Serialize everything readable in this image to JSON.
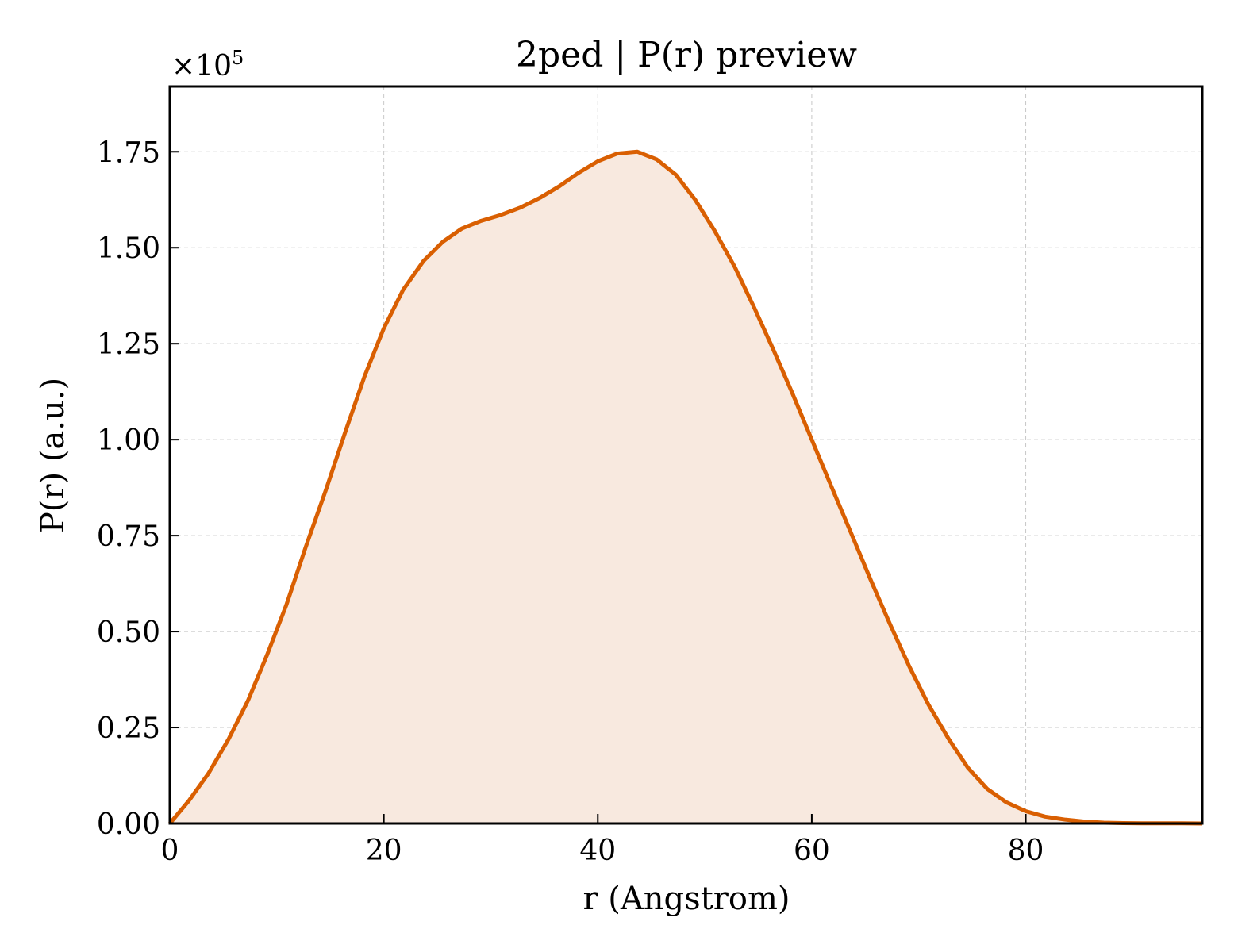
{
  "chart_data": {
    "type": "area",
    "title": "2ped | P(r) preview",
    "xlabel": "r (Angstrom)",
    "ylabel": "P(r) (a.u.)",
    "offset_text": {
      "base": "×10",
      "exponent": "5"
    },
    "xlim": [
      0,
      96.5
    ],
    "ylim": [
      0,
      1.92
    ],
    "xticks": [
      0,
      20,
      40,
      60,
      80
    ],
    "xtick_labels": [
      "0",
      "20",
      "40",
      "60",
      "80"
    ],
    "yticks": [
      0,
      0.25,
      0.5,
      0.75,
      1.0,
      1.25,
      1.5,
      1.75
    ],
    "ytick_labels": [
      "0.00",
      "0.25",
      "0.50",
      "0.75",
      "1.00",
      "1.25",
      "1.50",
      "1.75"
    ],
    "grid": true,
    "line_color": "#d95f02",
    "fill_color": "#f8e9df",
    "series": [
      {
        "x": [
          0,
          1.8,
          3.6,
          5.5,
          7.3,
          9.1,
          10.9,
          12.7,
          14.6,
          16.4,
          18.2,
          20.0,
          21.8,
          23.7,
          25.5,
          27.3,
          29.1,
          30.9,
          32.8,
          34.6,
          36.4,
          38.2,
          40.0,
          41.8,
          43.7,
          45.5,
          47.3,
          49.1,
          50.9,
          52.8,
          54.6,
          56.4,
          58.2,
          60.0,
          61.8,
          63.7,
          65.5,
          67.3,
          69.1,
          70.9,
          72.8,
          74.6,
          76.4,
          78.2,
          80.0,
          81.8,
          83.7,
          85.5,
          87.3,
          89.1,
          90.9,
          92.8,
          94.6,
          96.5
        ],
        "y": [
          0.0,
          0.06,
          0.13,
          0.22,
          0.32,
          0.44,
          0.57,
          0.72,
          0.87,
          1.02,
          1.165,
          1.29,
          1.39,
          1.465,
          1.515,
          1.55,
          1.57,
          1.585,
          1.605,
          1.63,
          1.66,
          1.695,
          1.725,
          1.745,
          1.75,
          1.73,
          1.69,
          1.625,
          1.545,
          1.45,
          1.345,
          1.235,
          1.12,
          1.0,
          0.88,
          0.755,
          0.635,
          0.52,
          0.41,
          0.31,
          0.22,
          0.145,
          0.09,
          0.055,
          0.032,
          0.018,
          0.01,
          0.005,
          0.002,
          0.001,
          0.0005,
          0.0005,
          0.0005,
          0.0
        ]
      }
    ]
  }
}
